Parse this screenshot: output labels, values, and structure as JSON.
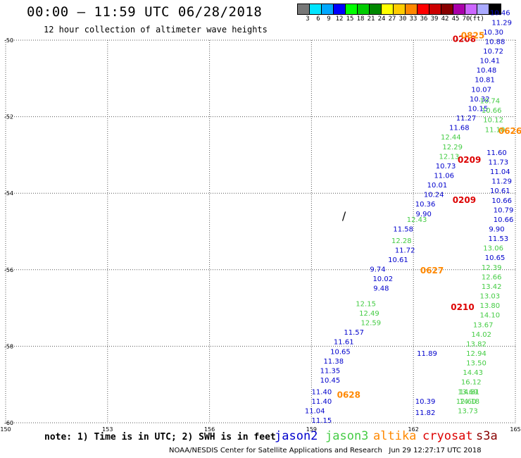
{
  "header": {
    "title": "00:00 – 11:59 UTC 06/28/2018",
    "subtitle": "12 hour collection of altimeter wave heights"
  },
  "colorbar": {
    "colors": [
      "#777777",
      "#00e5ff",
      "#00a8ff",
      "#0000ff",
      "#00ff00",
      "#00cc00",
      "#008800",
      "#ffff00",
      "#ffcc00",
      "#ff8800",
      "#ff0000",
      "#cc0000",
      "#880000",
      "#aa00aa",
      "#cc66ff",
      "#aaaaff",
      "#000000"
    ],
    "labels": [
      "3",
      "6",
      "9",
      "12",
      "15",
      "18",
      "21",
      "24",
      "27",
      "30",
      "33",
      "36",
      "39",
      "42",
      "45",
      "70",
      "(ft)"
    ]
  },
  "axes": {
    "xlim": [
      150,
      165
    ],
    "ylim": [
      -60,
      -50
    ],
    "xticks": [
      "150",
      "153",
      "156",
      "159",
      "162",
      "165"
    ],
    "yticks": [
      "-50",
      "-52",
      "-54",
      "-56",
      "-58",
      "-60"
    ],
    "grid": true
  },
  "colors": {
    "jason2": "#0000cc",
    "jason3": "#44cc44",
    "altika": "#ff8800",
    "cryosat": "#dd0000",
    "s3a": "#880000",
    "grid": "#555555"
  },
  "land_marker": "∕",
  "tracks": [
    {
      "sat": "jason2",
      "points": [
        [
          159.3,
          -60.0,
          "11.15"
        ],
        [
          159.1,
          -59.75,
          "11.04"
        ],
        [
          159.3,
          -59.5,
          "11.40"
        ],
        [
          159.3,
          -59.25,
          "11.40"
        ],
        [
          159.55,
          -58.95,
          "10.45"
        ],
        [
          159.55,
          -58.7,
          "11.35"
        ],
        [
          159.65,
          -58.45,
          "11.38"
        ],
        [
          159.85,
          -58.2,
          "10.65"
        ],
        [
          159.95,
          -57.95,
          "11.61"
        ],
        [
          160.25,
          -57.7,
          "11.57"
        ],
        [
          161.05,
          -56.55,
          "9.48"
        ],
        [
          161.1,
          -56.3,
          "10.02"
        ],
        [
          160.95,
          -56.05,
          "9.74"
        ],
        [
          161.55,
          -55.8,
          "10.61"
        ],
        [
          161.75,
          -55.55,
          "11.72"
        ],
        [
          161.7,
          -55.0,
          "11.58"
        ],
        [
          162.3,
          -54.6,
          "9.90"
        ],
        [
          162.35,
          -54.35,
          "10.36"
        ],
        [
          162.6,
          -54.1,
          "10.24"
        ],
        [
          162.7,
          -53.85,
          "10.01"
        ],
        [
          162.9,
          -53.6,
          "11.06"
        ],
        [
          162.95,
          -53.35,
          "10.73"
        ],
        [
          163.35,
          -52.35,
          "11.68"
        ],
        [
          163.55,
          -52.1,
          "11.27"
        ],
        [
          163.9,
          -51.85,
          "10.15"
        ],
        [
          163.95,
          -51.6,
          "10.32"
        ],
        [
          164.0,
          -51.35,
          "10.07"
        ],
        [
          164.1,
          -51.1,
          "10.81"
        ],
        [
          164.15,
          -50.85,
          "10.48"
        ],
        [
          164.25,
          -50.6,
          "10.41"
        ],
        [
          164.35,
          -50.35,
          "10.72"
        ],
        [
          164.4,
          -50.1,
          "10.88"
        ],
        [
          164.35,
          -49.85,
          "10.30"
        ],
        [
          164.6,
          -49.6,
          "11.29"
        ],
        [
          164.55,
          -49.35,
          "10.46"
        ],
        [
          164.45,
          -53.0,
          "11.60"
        ],
        [
          164.5,
          -53.25,
          "11.73"
        ],
        [
          164.55,
          -53.5,
          "11.04"
        ],
        [
          164.6,
          -53.75,
          "11.29"
        ],
        [
          164.55,
          -54.0,
          "10.61"
        ],
        [
          164.6,
          -54.25,
          "10.66"
        ],
        [
          164.65,
          -54.5,
          "10.79"
        ],
        [
          164.65,
          -54.75,
          "10.66"
        ],
        [
          164.45,
          -55.0,
          "9.90"
        ],
        [
          164.5,
          -55.25,
          "11.53"
        ],
        [
          164.4,
          -55.75,
          "10.65"
        ],
        [
          162.4,
          -58.25,
          "11.89"
        ],
        [
          162.35,
          -59.5,
          "10.39"
        ],
        [
          162.35,
          -59.8,
          "11.82"
        ]
      ]
    },
    {
      "sat": "jason3",
      "points": [
        [
          160.75,
          -57.45,
          "12.59"
        ],
        [
          160.7,
          -57.2,
          "12.49"
        ],
        [
          160.6,
          -56.95,
          "12.15"
        ],
        [
          161.65,
          -55.3,
          "12.28"
        ],
        [
          162.1,
          -54.75,
          "12.43"
        ],
        [
          163.1,
          -52.6,
          "12.44"
        ],
        [
          163.15,
          -52.85,
          "12.29"
        ],
        [
          163.05,
          -53.1,
          "12.13"
        ],
        [
          164.25,
          -51.65,
          "10.74"
        ],
        [
          164.3,
          -51.9,
          "10.66"
        ],
        [
          164.35,
          -52.15,
          "10.12"
        ],
        [
          164.4,
          -52.4,
          "11.10"
        ],
        [
          164.35,
          -55.5,
          "13.06"
        ],
        [
          164.3,
          -56.0,
          "12.39"
        ],
        [
          164.3,
          -56.25,
          "12.66"
        ],
        [
          164.3,
          -56.5,
          "13.42"
        ],
        [
          164.25,
          -56.75,
          "13.03"
        ],
        [
          164.25,
          -57.0,
          "13.80"
        ],
        [
          164.25,
          -57.25,
          "14.10"
        ],
        [
          164.05,
          -57.5,
          "13.67"
        ],
        [
          164.0,
          -57.75,
          "14.02"
        ],
        [
          163.85,
          -58.0,
          "13.82"
        ],
        [
          163.85,
          -58.25,
          "12.94"
        ],
        [
          163.85,
          -58.5,
          "13.50"
        ],
        [
          163.75,
          -58.75,
          "14.43"
        ],
        [
          163.7,
          -59.0,
          "16.12"
        ],
        [
          163.65,
          -59.25,
          "14.81"
        ],
        [
          163.65,
          -59.5,
          "14.18"
        ],
        [
          163.6,
          -59.75,
          "13.73"
        ],
        [
          163.6,
          -59.25,
          "13.69"
        ],
        [
          163.55,
          -59.5,
          "12.60"
        ]
      ]
    },
    {
      "sat": "altika",
      "points": []
    },
    {
      "sat": "cryosat",
      "points": []
    }
  ],
  "time_labels": [
    {
      "sat": "cryosat",
      "text": "0208",
      "lon": 163.15,
      "lat": -50.05
    },
    {
      "sat": "altika",
      "text": "0825",
      "lon": 163.4,
      "lat": -49.95
    },
    {
      "sat": "altika",
      "text": "0626",
      "lon": 164.5,
      "lat": -52.45
    },
    {
      "sat": "cryosat",
      "text": "0209",
      "lon": 163.3,
      "lat": -53.2
    },
    {
      "sat": "cryosat",
      "text": "0209",
      "lon": 163.15,
      "lat": -54.25
    },
    {
      "sat": "altika",
      "text": "0627",
      "lon": 162.2,
      "lat": -56.1
    },
    {
      "sat": "cryosat",
      "text": "0210",
      "lon": 163.1,
      "lat": -57.05
    },
    {
      "sat": "altika",
      "text": "0628",
      "lon": 159.75,
      "lat": -59.35
    }
  ],
  "footer": {
    "note": "note: 1) Time is in UTC; 2) SWH is in feet",
    "satellites": [
      {
        "key": "jason2",
        "label": "jason2"
      },
      {
        "key": "jason3",
        "label": "jason3"
      },
      {
        "key": "altika",
        "label": "altika"
      },
      {
        "key": "cryosat",
        "label": "cryosat"
      },
      {
        "key": "s3a",
        "label": "s3a"
      }
    ],
    "credit": "NOAA/NESDIS Center for Satellite Applications and Research   Jun 29 12:27:17 UTC 2018"
  }
}
